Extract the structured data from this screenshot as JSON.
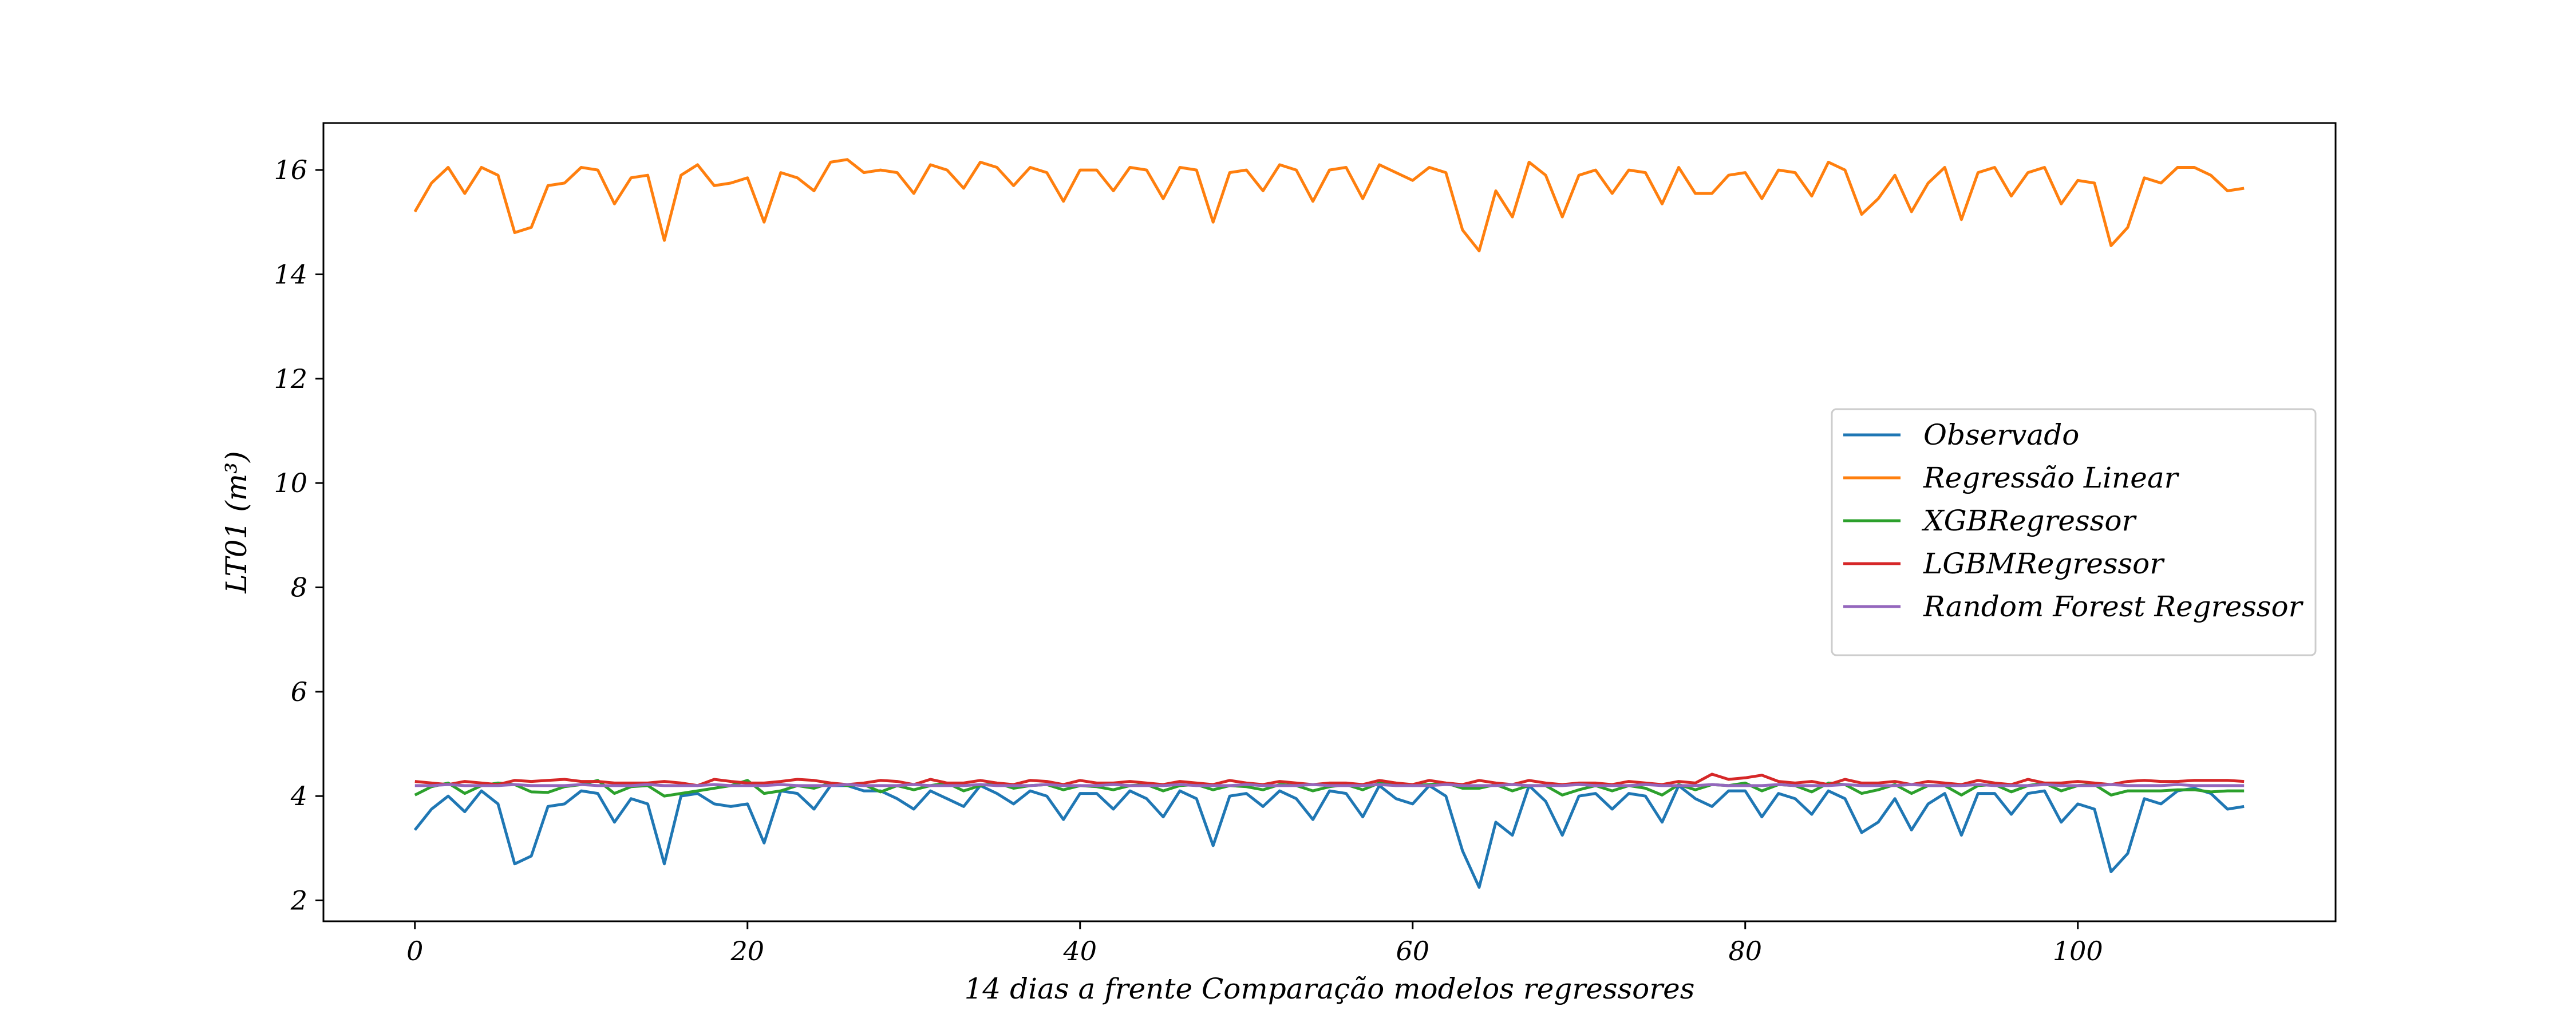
{
  "chart_data": {
    "type": "line",
    "title": "",
    "xlabel": "14 dias a frente Comparação modelos regressores",
    "ylabel": "LT01 (m³)",
    "xlim": [
      -5.5,
      115.5
    ],
    "ylim": [
      1.6,
      16.9
    ],
    "xticks": [
      0,
      20,
      40,
      60,
      80,
      100
    ],
    "yticks": [
      2,
      4,
      6,
      8,
      10,
      12,
      14,
      16
    ],
    "x_range": [
      0,
      110
    ],
    "grid": false,
    "legend_position": "center-right",
    "series": [
      {
        "name": "Observado",
        "color": "#1f77b4",
        "values": [
          3.35,
          3.75,
          4.0,
          3.7,
          4.1,
          3.85,
          2.7,
          2.85,
          3.8,
          3.85,
          4.1,
          4.05,
          3.5,
          3.95,
          3.85,
          2.7,
          4.0,
          4.05,
          3.85,
          3.8,
          3.85,
          3.1,
          4.1,
          4.05,
          3.75,
          4.2,
          4.2,
          4.1,
          4.1,
          3.95,
          3.75,
          4.1,
          3.95,
          3.8,
          4.2,
          4.05,
          3.85,
          4.1,
          4.0,
          3.55,
          4.05,
          4.05,
          3.75,
          4.1,
          3.95,
          3.6,
          4.1,
          3.95,
          3.05,
          4.0,
          4.05,
          3.8,
          4.1,
          3.95,
          3.55,
          4.1,
          4.05,
          3.6,
          4.2,
          3.95,
          3.85,
          4.2,
          4.0,
          2.95,
          2.25,
          3.5,
          3.25,
          4.2,
          3.9,
          3.25,
          4.0,
          4.05,
          3.75,
          4.05,
          4.0,
          3.5,
          4.2,
          3.95,
          3.8,
          4.1,
          4.1,
          3.6,
          4.05,
          3.95,
          3.65,
          4.1,
          3.95,
          3.3,
          3.5,
          3.95,
          3.35,
          3.85,
          4.05,
          3.25,
          4.05,
          4.05,
          3.65,
          4.05,
          4.1,
          3.5,
          3.85,
          3.75,
          2.55,
          2.9,
          3.95,
          3.85,
          4.1,
          4.15,
          4.05,
          3.75,
          3.8
        ]
      },
      {
        "name": "Regressão Linear",
        "color": "#ff7f0e",
        "values": [
          15.2,
          15.75,
          16.05,
          15.55,
          16.05,
          15.9,
          14.8,
          14.9,
          15.7,
          15.75,
          16.05,
          16.0,
          15.35,
          15.85,
          15.9,
          14.65,
          15.9,
          16.1,
          15.7,
          15.75,
          15.85,
          15.0,
          15.95,
          15.85,
          15.6,
          16.15,
          16.2,
          15.95,
          16.0,
          15.95,
          15.55,
          16.1,
          16.0,
          15.65,
          16.15,
          16.05,
          15.7,
          16.05,
          15.95,
          15.4,
          16.0,
          16.0,
          15.6,
          16.05,
          16.0,
          15.45,
          16.05,
          16.0,
          15.0,
          15.95,
          16.0,
          15.6,
          16.1,
          16.0,
          15.4,
          16.0,
          16.05,
          15.45,
          16.1,
          15.95,
          15.8,
          16.05,
          15.95,
          14.85,
          14.45,
          15.6,
          15.1,
          16.15,
          15.9,
          15.1,
          15.9,
          16.0,
          15.55,
          16.0,
          15.95,
          15.35,
          16.05,
          15.55,
          15.55,
          15.9,
          15.95,
          15.45,
          16.0,
          15.95,
          15.5,
          16.15,
          16.0,
          15.15,
          15.45,
          15.9,
          15.2,
          15.75,
          16.05,
          15.05,
          15.95,
          16.05,
          15.5,
          15.95,
          16.05,
          15.35,
          15.8,
          15.75,
          14.55,
          14.9,
          15.85,
          15.75,
          16.05,
          16.05,
          15.9,
          15.6,
          15.65
        ]
      },
      {
        "name": "XGBRegressor",
        "color": "#2ca02c",
        "values": [
          4.02,
          4.18,
          4.25,
          4.05,
          4.2,
          4.25,
          4.22,
          4.08,
          4.07,
          4.18,
          4.22,
          4.3,
          4.05,
          4.18,
          4.2,
          4.0,
          4.05,
          4.1,
          4.15,
          4.2,
          4.3,
          4.05,
          4.1,
          4.2,
          4.15,
          4.25,
          4.2,
          4.22,
          4.08,
          4.2,
          4.12,
          4.2,
          4.25,
          4.1,
          4.2,
          4.25,
          4.15,
          4.2,
          4.22,
          4.12,
          4.2,
          4.18,
          4.12,
          4.2,
          4.22,
          4.1,
          4.2,
          4.22,
          4.12,
          4.2,
          4.18,
          4.12,
          4.22,
          4.2,
          4.1,
          4.18,
          4.22,
          4.12,
          4.25,
          4.25,
          4.2,
          4.22,
          4.25,
          4.15,
          4.15,
          4.22,
          4.1,
          4.2,
          4.2,
          4.02,
          4.12,
          4.2,
          4.1,
          4.2,
          4.15,
          4.02,
          4.22,
          4.12,
          4.22,
          4.2,
          4.25,
          4.1,
          4.22,
          4.2,
          4.08,
          4.25,
          4.22,
          4.05,
          4.12,
          4.22,
          4.05,
          4.2,
          4.2,
          4.02,
          4.2,
          4.22,
          4.08,
          4.2,
          4.25,
          4.1,
          4.2,
          4.22,
          4.02,
          4.1,
          4.1,
          4.1,
          4.12,
          4.12,
          4.08,
          4.1,
          4.1
        ]
      },
      {
        "name": "LGBMRegressor",
        "color": "#d62728",
        "values": [
          4.28,
          4.25,
          4.22,
          4.28,
          4.25,
          4.22,
          4.3,
          4.28,
          4.3,
          4.32,
          4.28,
          4.28,
          4.25,
          4.25,
          4.25,
          4.28,
          4.25,
          4.2,
          4.32,
          4.28,
          4.25,
          4.25,
          4.28,
          4.32,
          4.3,
          4.25,
          4.22,
          4.25,
          4.3,
          4.28,
          4.22,
          4.32,
          4.25,
          4.25,
          4.3,
          4.25,
          4.22,
          4.3,
          4.28,
          4.22,
          4.3,
          4.25,
          4.25,
          4.28,
          4.25,
          4.22,
          4.28,
          4.25,
          4.22,
          4.3,
          4.25,
          4.22,
          4.28,
          4.25,
          4.22,
          4.25,
          4.25,
          4.22,
          4.3,
          4.25,
          4.22,
          4.3,
          4.25,
          4.22,
          4.3,
          4.25,
          4.22,
          4.3,
          4.25,
          4.22,
          4.25,
          4.25,
          4.22,
          4.28,
          4.25,
          4.22,
          4.28,
          4.25,
          4.42,
          4.32,
          4.35,
          4.4,
          4.28,
          4.25,
          4.28,
          4.22,
          4.32,
          4.25,
          4.25,
          4.28,
          4.22,
          4.28,
          4.25,
          4.22,
          4.3,
          4.25,
          4.22,
          4.32,
          4.25,
          4.25,
          4.28,
          4.25,
          4.22,
          4.28,
          4.3,
          4.28,
          4.28,
          4.3,
          4.3,
          4.3,
          4.28
        ]
      },
      {
        "name": "Random Forest Regressor",
        "color": "#9467bd",
        "values": [
          4.2,
          4.2,
          4.22,
          4.2,
          4.2,
          4.2,
          4.22,
          4.2,
          4.2,
          4.2,
          4.22,
          4.2,
          4.2,
          4.2,
          4.22,
          4.2,
          4.2,
          4.2,
          4.22,
          4.2,
          4.2,
          4.2,
          4.22,
          4.2,
          4.2,
          4.2,
          4.22,
          4.2,
          4.2,
          4.2,
          4.22,
          4.2,
          4.2,
          4.2,
          4.22,
          4.2,
          4.2,
          4.2,
          4.22,
          4.2,
          4.2,
          4.2,
          4.22,
          4.2,
          4.2,
          4.2,
          4.22,
          4.2,
          4.2,
          4.2,
          4.22,
          4.2,
          4.2,
          4.2,
          4.22,
          4.2,
          4.2,
          4.2,
          4.22,
          4.2,
          4.2,
          4.2,
          4.22,
          4.2,
          4.2,
          4.2,
          4.22,
          4.2,
          4.2,
          4.2,
          4.22,
          4.2,
          4.2,
          4.2,
          4.22,
          4.2,
          4.2,
          4.2,
          4.22,
          4.2,
          4.2,
          4.2,
          4.22,
          4.2,
          4.2,
          4.2,
          4.22,
          4.2,
          4.2,
          4.2,
          4.22,
          4.2,
          4.2,
          4.2,
          4.22,
          4.2,
          4.2,
          4.2,
          4.22,
          4.2,
          4.2,
          4.2,
          4.22,
          4.2,
          4.2,
          4.2,
          4.22,
          4.2,
          4.2,
          4.2,
          4.2
        ]
      }
    ]
  }
}
